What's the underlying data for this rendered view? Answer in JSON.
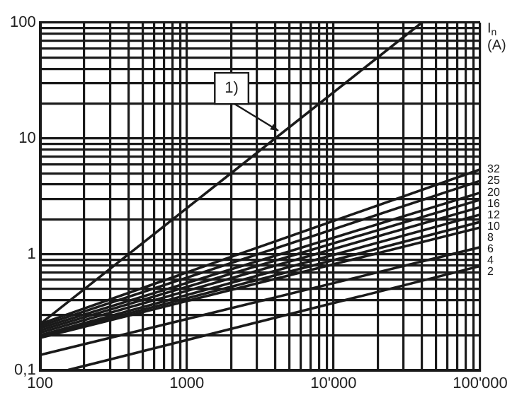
{
  "chart_data": {
    "type": "line",
    "legend_title": "I$_{n}$\n(A)",
    "annotations": [
      {
        "text": "1)",
        "x": 4400,
        "y": 11
      }
    ],
    "log": "xy",
    "grid": true,
    "legend": false,
    "marker": "none",
    "line_style": "solid",
    "xlim": [
      100,
      100000
    ],
    "ylim": [
      0.1,
      100
    ],
    "xticks": [
      100,
      {
        "value": 200,
        "label": null
      },
      {
        "value": 300,
        "label": null
      },
      {
        "value": 400,
        "label": null
      },
      {
        "value": 500,
        "label": null
      },
      {
        "value": 600,
        "label": null
      },
      {
        "value": 700,
        "label": null
      },
      {
        "value": 800,
        "label": null
      },
      {
        "value": 900,
        "label": null
      },
      1000,
      {
        "value": 2000,
        "label": null
      },
      {
        "value": 3000,
        "label": null
      },
      {
        "value": 4000,
        "label": null
      },
      {
        "value": 5000,
        "label": null
      },
      {
        "value": 6000,
        "label": null
      },
      {
        "value": 7000,
        "label": null
      },
      {
        "value": 8000,
        "label": null
      },
      {
        "value": 9000,
        "label": null
      },
      {
        "value": 10000,
        "label": "10'000"
      },
      {
        "value": 20000,
        "label": null
      },
      {
        "value": 30000,
        "label": null
      },
      {
        "value": 40000,
        "label": null
      },
      {
        "value": 50000,
        "label": null
      },
      {
        "value": 60000,
        "label": null
      },
      {
        "value": 70000,
        "label": null
      },
      {
        "value": 80000,
        "label": null
      },
      {
        "value": 90000,
        "label": null
      },
      {
        "value": 100000,
        "label": "100'000"
      }
    ],
    "yticks": [
      {
        "value": 0.1,
        "label": "0,1"
      },
      {
        "value": 0.2,
        "label": null
      },
      {
        "value": 0.3,
        "label": null
      },
      {
        "value": 0.4,
        "label": null
      },
      {
        "value": 0.5,
        "label": null
      },
      {
        "value": 0.6,
        "label": null
      },
      {
        "value": 0.7,
        "label": null
      },
      {
        "value": 0.8,
        "label": null
      },
      {
        "value": 0.9,
        "label": null
      },
      1,
      {
        "value": 2,
        "label": null
      },
      {
        "value": 3,
        "label": null
      },
      {
        "value": 4,
        "label": null
      },
      {
        "value": 5,
        "label": null
      },
      {
        "value": 6,
        "label": null
      },
      {
        "value": 7,
        "label": null
      },
      {
        "value": 8,
        "label": null
      },
      {
        "value": 9,
        "label": null
      },
      10,
      {
        "value": 20,
        "label": null
      },
      {
        "value": 30,
        "label": null
      },
      {
        "value": 40,
        "label": null
      },
      {
        "value": 50,
        "label": null
      },
      {
        "value": 60,
        "label": null
      },
      {
        "value": 70,
        "label": null
      },
      {
        "value": 80,
        "label": null
      },
      {
        "value": 90,
        "label": null
      },
      100
    ],
    "series": [
      {
        "color": "#1a1a1a",
        "x": [
          100,
          40000
        ],
        "values": [
          0.25,
          100
        ]
      },
      {
        "name": "32",
        "color": "#1a1a1a",
        "x": [
          100,
          100000
        ],
        "values": [
          0.25,
          5.4
        ]
      },
      {
        "name": "25",
        "color": "#1a1a1a",
        "x": [
          100,
          100000
        ],
        "values": [
          0.24,
          4.3
        ]
      },
      {
        "name": "20",
        "color": "#1a1a1a",
        "x": [
          100,
          100000
        ],
        "values": [
          0.23,
          3.4
        ]
      },
      {
        "name": "16",
        "color": "#1a1a1a",
        "x": [
          100,
          100000
        ],
        "values": [
          0.22,
          2.95
        ]
      },
      {
        "name": "12",
        "color": "#1a1a1a",
        "x": [
          100,
          100000
        ],
        "values": [
          0.21,
          2.55
        ]
      },
      {
        "name": "10",
        "color": "#1a1a1a",
        "x": [
          100,
          100000
        ],
        "values": [
          0.2,
          2.2
        ]
      },
      {
        "name": "8",
        "color": "#1a1a1a",
        "x": [
          100,
          100000
        ],
        "values": [
          0.195,
          1.9
        ]
      },
      {
        "name": "6",
        "color": "#1a1a1a",
        "x": [
          100,
          100000
        ],
        "values": [
          0.19,
          1.7
        ]
      },
      {
        "name": "4",
        "color": "#1a1a1a",
        "x": [
          100,
          100000
        ],
        "values": [
          0.135,
          1.15
        ]
      },
      {
        "name": "2",
        "color": "#1a1a1a",
        "x": [
          155,
          100000
        ],
        "values": [
          0.1,
          0.79
        ]
      }
    ]
  }
}
